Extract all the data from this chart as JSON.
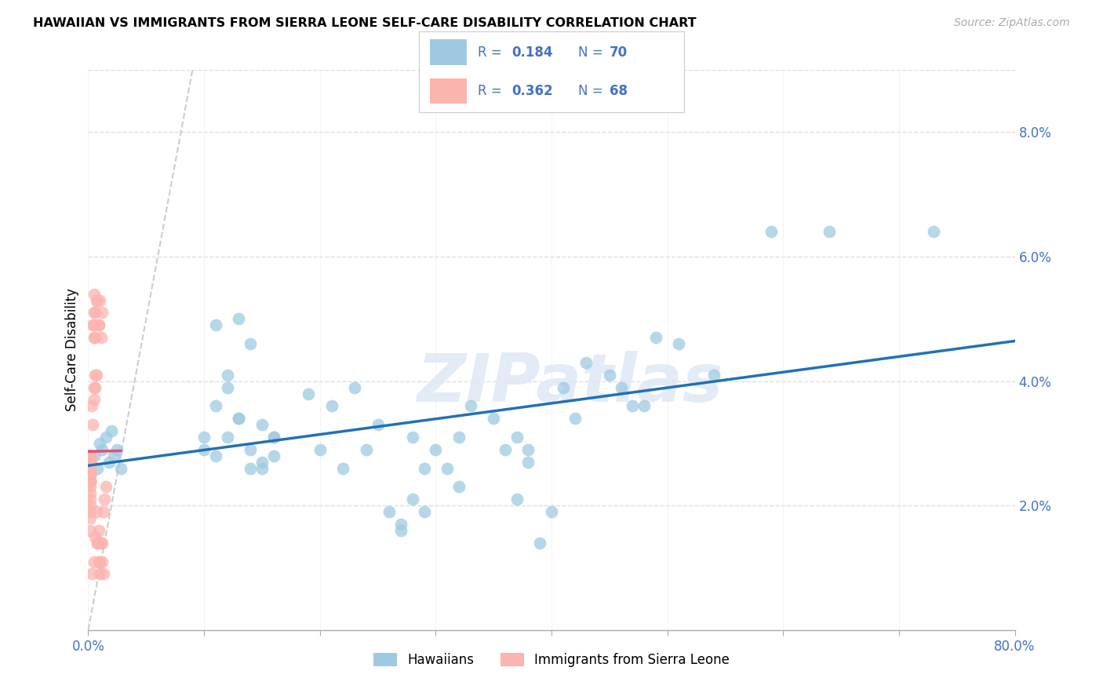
{
  "title": "HAWAIIAN VS IMMIGRANTS FROM SIERRA LEONE SELF-CARE DISABILITY CORRELATION CHART",
  "source": "Source: ZipAtlas.com",
  "ylabel": "Self-Care Disability",
  "xlim": [
    0,
    0.8
  ],
  "ylim": [
    0,
    0.09
  ],
  "yticks": [
    0.02,
    0.04,
    0.06,
    0.08
  ],
  "ytick_labels": [
    "2.0%",
    "4.0%",
    "6.0%",
    "8.0%"
  ],
  "xticks": [
    0.0,
    0.1,
    0.2,
    0.3,
    0.4,
    0.5,
    0.6,
    0.7,
    0.8
  ],
  "xtick_labels_show": [
    "0.0%",
    "",
    "",
    "",
    "",
    "",
    "",
    "",
    "80.0%"
  ],
  "legend_text_color": "#4472c4",
  "blue_color": "#9ecae1",
  "pink_color": "#fbb4ae",
  "blue_line_color": "#2171b5",
  "pink_line_color": "#e05080",
  "axis_color": "#4472c4",
  "watermark": "ZIPatlas",
  "hawaiians_x": [
    0.005,
    0.008,
    0.01,
    0.012,
    0.015,
    0.018,
    0.02,
    0.022,
    0.025,
    0.028,
    0.1,
    0.11,
    0.12,
    0.13,
    0.13,
    0.14,
    0.15,
    0.15,
    0.16,
    0.16,
    0.11,
    0.12,
    0.14,
    0.1,
    0.15,
    0.16,
    0.11,
    0.13,
    0.12,
    0.14,
    0.19,
    0.2,
    0.21,
    0.22,
    0.23,
    0.24,
    0.25,
    0.26,
    0.27,
    0.28,
    0.28,
    0.3,
    0.31,
    0.32,
    0.33,
    0.29,
    0.27,
    0.32,
    0.29,
    0.35,
    0.36,
    0.38,
    0.39,
    0.4,
    0.37,
    0.41,
    0.42,
    0.38,
    0.37,
    0.43,
    0.45,
    0.47,
    0.49,
    0.51,
    0.54,
    0.46,
    0.48,
    0.59,
    0.64,
    0.73
  ],
  "hawaiians_y": [
    0.028,
    0.026,
    0.03,
    0.029,
    0.031,
    0.027,
    0.032,
    0.028,
    0.029,
    0.026,
    0.031,
    0.049,
    0.031,
    0.034,
    0.05,
    0.029,
    0.026,
    0.027,
    0.028,
    0.031,
    0.036,
    0.039,
    0.046,
    0.029,
    0.033,
    0.031,
    0.028,
    0.034,
    0.041,
    0.026,
    0.038,
    0.029,
    0.036,
    0.026,
    0.039,
    0.029,
    0.033,
    0.019,
    0.016,
    0.021,
    0.031,
    0.029,
    0.026,
    0.023,
    0.036,
    0.019,
    0.017,
    0.031,
    0.026,
    0.034,
    0.029,
    0.027,
    0.014,
    0.019,
    0.021,
    0.039,
    0.034,
    0.029,
    0.031,
    0.043,
    0.041,
    0.036,
    0.047,
    0.046,
    0.041,
    0.039,
    0.036,
    0.064,
    0.064,
    0.064
  ],
  "sierra_x": [
    0.002,
    0.002,
    0.002,
    0.002,
    0.002,
    0.002,
    0.002,
    0.002,
    0.002,
    0.002,
    0.002,
    0.002,
    0.002,
    0.002,
    0.002,
    0.002,
    0.002,
    0.002,
    0.002,
    0.002,
    0.002,
    0.002,
    0.002,
    0.002,
    0.002,
    0.002,
    0.002,
    0.002,
    0.002,
    0.002,
    0.003,
    0.004,
    0.005,
    0.004,
    0.005,
    0.006,
    0.007,
    0.006,
    0.006,
    0.005,
    0.008,
    0.01,
    0.012,
    0.009,
    0.011,
    0.013,
    0.015,
    0.014,
    0.012,
    0.008,
    0.009,
    0.008,
    0.01,
    0.012,
    0.013,
    0.007,
    0.009,
    0.011,
    0.01,
    0.005,
    0.005,
    0.006,
    0.005,
    0.007,
    0.009,
    0.005,
    0.006,
    0.003
  ],
  "sierra_y": [
    0.028,
    0.028,
    0.028,
    0.028,
    0.028,
    0.028,
    0.028,
    0.027,
    0.027,
    0.027,
    0.027,
    0.027,
    0.026,
    0.026,
    0.026,
    0.025,
    0.025,
    0.025,
    0.025,
    0.024,
    0.024,
    0.024,
    0.024,
    0.023,
    0.022,
    0.021,
    0.02,
    0.019,
    0.018,
    0.016,
    0.036,
    0.033,
    0.051,
    0.049,
    0.047,
    0.051,
    0.041,
    0.041,
    0.039,
    0.037,
    0.053,
    0.053,
    0.051,
    0.049,
    0.047,
    0.019,
    0.023,
    0.021,
    0.014,
    0.014,
    0.011,
    0.014,
    0.011,
    0.011,
    0.009,
    0.019,
    0.016,
    0.014,
    0.009,
    0.011,
    0.049,
    0.047,
    0.054,
    0.053,
    0.049,
    0.039,
    0.015,
    0.009
  ]
}
